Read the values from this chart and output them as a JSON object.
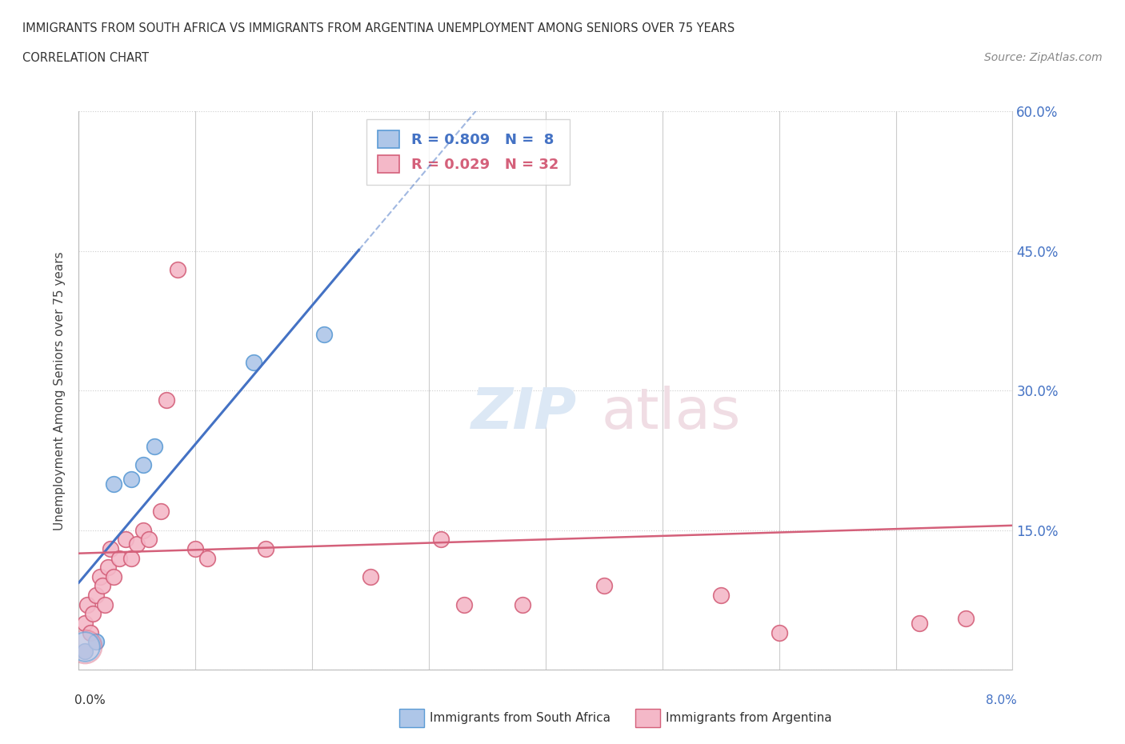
{
  "title_line1": "IMMIGRANTS FROM SOUTH AFRICA VS IMMIGRANTS FROM ARGENTINA UNEMPLOYMENT AMONG SENIORS OVER 75 YEARS",
  "title_line2": "CORRELATION CHART",
  "source": "Source: ZipAtlas.com",
  "ylabel": "Unemployment Among Seniors over 75 years",
  "xlim": [
    0.0,
    8.0
  ],
  "ylim": [
    0.0,
    60.0
  ],
  "yticks": [
    0.0,
    15.0,
    30.0,
    45.0,
    60.0
  ],
  "south_africa_R": 0.809,
  "south_africa_N": 8,
  "argentina_R": 0.029,
  "argentina_N": 32,
  "south_africa_color": "#aec6e8",
  "south_africa_edge": "#5b9bd5",
  "argentina_color": "#f4b8c8",
  "argentina_edge": "#d4607a",
  "south_africa_line_color": "#4472c4",
  "argentina_line_color": "#d4607a",
  "sa_x": [
    0.05,
    0.15,
    0.3,
    0.45,
    0.55,
    0.65,
    1.5,
    2.1
  ],
  "sa_y": [
    2.0,
    3.0,
    20.0,
    20.5,
    22.0,
    24.0,
    33.0,
    36.0
  ],
  "sa_large_x": 0.05,
  "sa_large_y": 2.5,
  "arg_x": [
    0.05,
    0.07,
    0.1,
    0.12,
    0.15,
    0.18,
    0.2,
    0.22,
    0.25,
    0.27,
    0.3,
    0.35,
    0.4,
    0.45,
    0.5,
    0.55,
    0.6,
    0.7,
    0.75,
    0.85,
    1.0,
    1.1,
    1.6,
    2.5,
    3.1,
    3.3,
    3.8,
    4.5,
    5.5,
    6.0,
    7.2,
    7.6
  ],
  "arg_y": [
    5.0,
    7.0,
    4.0,
    6.0,
    8.0,
    10.0,
    9.0,
    7.0,
    11.0,
    13.0,
    10.0,
    12.0,
    14.0,
    12.0,
    13.5,
    15.0,
    14.0,
    17.0,
    29.0,
    43.0,
    13.0,
    12.0,
    13.0,
    10.0,
    14.0,
    7.0,
    7.0,
    9.0,
    8.0,
    4.0,
    5.0,
    5.5
  ],
  "sa_trendline_x0": 0.0,
  "sa_trendline_x1": 2.8,
  "sa_dash_x0": 2.8,
  "sa_dash_x1": 5.0,
  "arg_trendline_x0": 0.0,
  "arg_trendline_x1": 8.0,
  "arg_y_at_0": 12.5,
  "arg_y_at_8": 15.5,
  "watermark_zip_color": "#dde8f4",
  "watermark_atlas_color": "#f0dde4"
}
